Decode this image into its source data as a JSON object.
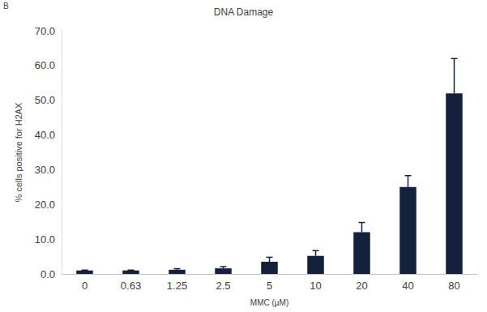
{
  "chart_data": {
    "type": "bar",
    "title": "DNA Damage",
    "annotations": [
      "B"
    ],
    "x_label": "MMC (µM)",
    "y_label": "% cells positive for H2AX",
    "categories": [
      "0",
      "0.63",
      "1.25",
      "2.5",
      "5",
      "10",
      "20",
      "40",
      "80"
    ],
    "values": [
      1.0,
      1.0,
      1.2,
      1.6,
      3.5,
      5.2,
      12.0,
      25.0,
      52.0
    ],
    "errors": [
      0.1,
      0.1,
      0.3,
      0.5,
      1.3,
      1.5,
      2.8,
      3.3,
      10.0
    ],
    "color": "#14213d",
    "ylim": [
      0,
      70
    ],
    "yticks": [
      {
        "value": 0,
        "label": "0.0"
      },
      {
        "value": 10,
        "label": "10.0"
      },
      {
        "value": 20,
        "label": "20.0"
      },
      {
        "value": 30,
        "label": "30.0"
      },
      {
        "value": 40,
        "label": "40.0"
      },
      {
        "value": 50,
        "label": "50.0"
      },
      {
        "value": 60,
        "label": "60.0"
      },
      {
        "value": 70,
        "label": "70.0"
      }
    ],
    "grid": false
  }
}
